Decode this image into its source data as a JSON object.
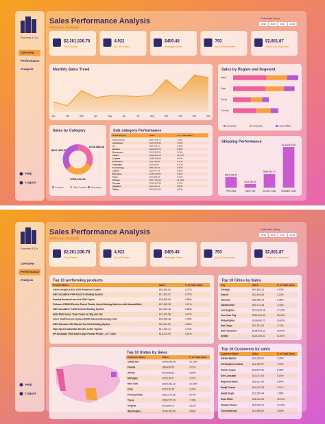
{
  "pages": [
    {
      "logo": "Success & Co.",
      "title": "Sales Performance Analysis",
      "subtitle": "Welcome, Mubarak",
      "filter": {
        "label": "Order date (Year)",
        "options": [
          "2015",
          "2016",
          "2017",
          "2018"
        ]
      },
      "nav": [
        "Overview",
        "Performance",
        "Analysis"
      ],
      "active_nav": 0,
      "footer_nav": [
        "Help",
        "Logout"
      ],
      "kpis": [
        {
          "value": "$2,261,536.78",
          "label": "Total Sales"
        },
        {
          "value": "4,922",
          "label": "No of Orders"
        },
        {
          "value": "$459.48",
          "label": "Average Sales"
        },
        {
          "value": "793",
          "label": "No of Customers"
        },
        {
          "value": "$2,851.87",
          "label": "Sales per customer"
        }
      ],
      "tables": [
        {
          "title": "Sub-category Performance",
          "columns": [
            "Sub-Category",
            "Sales",
            "% of Total Sales"
          ],
          "rows": [
            [
              "Accessories",
              "$164,186.70",
              "7.26%"
            ],
            [
              "Appliances",
              "$104,618.40",
              "4.63%"
            ],
            [
              "Art",
              "$26,705.41",
              "1.18%"
            ],
            [
              "Binders",
              "$200,028.79",
              "8.84%"
            ],
            [
              "Bookcases",
              "$113,813.20",
              "5.03%"
            ],
            [
              "Chairs",
              "$322,822.73",
              "14.27%"
            ],
            [
              "Copiers",
              "$146,248.09",
              "6.47%"
            ],
            [
              "Envelopes",
              "$16,128.05",
              "0.71%"
            ],
            [
              "Fasteners",
              "$3,001.96",
              "0.13%"
            ],
            [
              "Furnishings",
              "$89,212.02",
              "3.94%"
            ],
            [
              "Labels",
              "$12,347.73",
              "0.55%"
            ],
            [
              "Machines",
              "$189,238.63",
              "8.37%"
            ],
            [
              "Paper",
              "$76,828.30",
              "3.40%"
            ],
            [
              "Phones",
              "$327,782.45",
              "14.49%"
            ],
            [
              "Storage",
              "$219,343.39",
              "9.70%"
            ],
            [
              "Supplies",
              "$46,420.31",
              "2.05%"
            ],
            [
              "Tables",
              "$202,810.63",
              "8.97%"
            ]
          ]
        }
      ]
    },
    {
      "logo": "Success & Co.",
      "title": "Sales Performance Analysis",
      "subtitle": "Welcome, Mubarak",
      "filter": {
        "label": "Order date (Year)",
        "options": [
          "2015",
          "2016",
          "2017",
          "2018"
        ]
      },
      "nav": [
        "Overview",
        "Performance",
        "Analysis"
      ],
      "active_nav": 1,
      "footer_nav": [
        "Help",
        "Logout"
      ],
      "kpis": [
        {
          "value": "$2,261,536.78",
          "label": "Total Sales"
        },
        {
          "value": "4,922",
          "label": "No of Orders"
        },
        {
          "value": "$459.48",
          "label": "Average Sales"
        },
        {
          "value": "793",
          "label": "No of Customers"
        },
        {
          "value": "$2,851.87",
          "label": "Sales per customer"
        }
      ],
      "tables": [
        {
          "title": "Top 10 performing products",
          "columns": [
            "Product Name",
            "Sales",
            "% of Total Sales"
          ],
          "rows": [
            [
              "Canon imageCLASS 2200 Advanced Copier",
              "$61,599.82",
              "2.72%"
            ],
            [
              "GBC DocuBind P400 Electric Binding System",
              "$17,965.07",
              "0.79%"
            ],
            [
              "Hewlett Packard LaserJet 3350 Copier",
              "$18,839.69",
              "0.83%"
            ],
            [
              "Fellowes PB500 Electric Punch Plastic Comb Binding Machine with Manual Bind",
              "$27,453.38",
              "1.21%"
            ],
            [
              "GBC DocuBind TL300 Electric Binding System",
              "$19,823.48",
              "0.88%"
            ],
            [
              "HON 5400 Series Task Chairs for Big and Tall",
              "$21,870.58",
              "0.97%"
            ],
            [
              "Cisco TelePresence System EX90 Videoconferencing Unit",
              "$22,638.48",
              "1.00%"
            ],
            [
              "GBC Ibimaster 500 Manual ProClick Binding System",
              "$19,024.50",
              "0.84%"
            ],
            [
              "High Speed Automatic Electric Letter Opener",
              "$17,030.31",
              "0.75%"
            ],
            [
              "HP Designjet T520 Inkjet Large Format Printer - 24\" Color",
              "$18,374.90",
              "0.81%"
            ]
          ]
        },
        {
          "title": "Top 10 States by Sales",
          "columns": [
            "Customer Name",
            "Sales",
            "% of Total Sales"
          ],
          "rows": [
            [
              "California",
              "$446,306.46",
              "19.73%"
            ],
            [
              "Florida",
              "$88,436.53",
              "3.91%"
            ],
            [
              "Illinois",
              "$79,236.52",
              "3.50%"
            ],
            [
              "Michigan",
              "$76,136.07",
              "3.37%"
            ],
            [
              "New York",
              "$306,361.15",
              "13.55%"
            ],
            [
              "Ohio",
              "$75,130.35",
              "3.32%"
            ],
            [
              "Pennsylvania",
              "$116,276.65",
              "5.14%"
            ],
            [
              "Texas",
              "$168,572.53",
              "7.45%"
            ],
            [
              "Virginia",
              "$70,636.72",
              "3.12%"
            ],
            [
              "Washington",
              "$135,206.85",
              "5.98%"
            ]
          ]
        },
        {
          "title": "Top 10 Cities by Sales",
          "columns": [
            "City",
            "Sales",
            "% of Total Sales"
          ],
          "rows": [
            [
              "Chicago",
              "$47,820.13",
              "4.75%"
            ],
            [
              "Detroit",
              "$42,446.94",
              "4.22%"
            ],
            [
              "Houston",
              "$63,956.14",
              "6.36%"
            ],
            [
              "Jacksonville",
              "$44,713.18",
              "4.44%"
            ],
            [
              "Los Angeles",
              "$173,420.18",
              "17.23%"
            ],
            [
              "New York City",
              "$252,462.55",
              "25.09%"
            ],
            [
              "Philadelphia",
              "$108,841.75",
              "10.82%"
            ],
            [
              "San Diego",
              "$47,521.03",
              "4.72%"
            ],
            [
              "San Francisco",
              "$109,041.12",
              "10.84%"
            ],
            [
              "Seattle",
              "$116,106.32",
              "11.54%"
            ]
          ]
        },
        {
          "title": "Top 10 Customers by sales",
          "columns": [
            "Customer Name",
            "Sales",
            "% of Total Sales"
          ],
          "rows": [
            [
              "Adrian Barton",
              "$14,355.61",
              "9.35%"
            ],
            [
              "Christopher Conant",
              "$12,129.07",
              "7.90%"
            ],
            [
              "Hunter Lopez",
              "$12,873.30",
              "8.38%"
            ],
            [
              "Ken Lonsdale",
              "$14,071.92",
              "9.16%"
            ],
            [
              "Raymond Buch",
              "$15,117.34",
              "9.84%"
            ],
            [
              "Sanjit Chand",
              "$14,142.33",
              "9.21%"
            ],
            [
              "Sanjit Engle",
              "$12,209.44",
              "7.95%"
            ],
            [
              "Sean Miller",
              "$25,043.05",
              "16.31%"
            ],
            [
              "Tamara Chand",
              "$19,052.22",
              "12.40%"
            ],
            [
              "Tom Ashbrook",
              "$14,595.62",
              "9.50%"
            ]
          ]
        }
      ]
    }
  ],
  "chart_data": [
    {
      "type": "area",
      "title": "Monthly Sales Trend",
      "categories": [
        "Jan",
        "Feb",
        "Mar",
        "Apr",
        "May",
        "Jun",
        "Jul",
        "Aug",
        "Sep",
        "Oct",
        "Nov",
        "Dec"
      ],
      "values": [
        95000,
        60000,
        205000,
        138000,
        155000,
        153000,
        147000,
        159000,
        308000,
        200000,
        352000,
        325000
      ],
      "color": "#f0a030"
    },
    {
      "type": "stacked_hbar",
      "title": "Sales by Region and Segment",
      "categories": [
        "West",
        "East",
        "South",
        "Central"
      ],
      "series": [
        {
          "name": "Consumer",
          "color": "#ef5f9c",
          "values": [
            362880,
            350908,
            195581,
            252031
          ]
        },
        {
          "name": "Corporate",
          "color": "#f7a043",
          "values": [
            225856,
            200409,
            121886,
            157996
          ]
        },
        {
          "name": "Home Office",
          "color": "#b25ad3",
          "values": [
            121483,
            118208,
            71685,
            82619
          ]
        }
      ]
    },
    {
      "type": "donut",
      "title": "Sales by Category",
      "categories": [
        "Furniture",
        "Office Supplies",
        "Technology"
      ],
      "values": [
        728658.58,
        705422.33,
        827455.87
      ],
      "value_labels": [
        "$728,658.58",
        "$705,422.33",
        "$827,455.87"
      ],
      "colors": [
        "#e96ba8",
        "#f6a63a",
        "#b45bd0"
      ]
    },
    {
      "type": "bar",
      "title": "Shipping Performance",
      "categories": [
        "First Class",
        "Same Day",
        "Second Class",
        "Standard Class"
      ],
      "values": [
        351428.42,
        119362.3,
        449914.17,
        1340831.8
      ],
      "value_labels": [
        "$351,428.42",
        "$119,362.30",
        "$449,914.17",
        "$1,340,831.80"
      ],
      "color": "#c95bd1"
    }
  ]
}
